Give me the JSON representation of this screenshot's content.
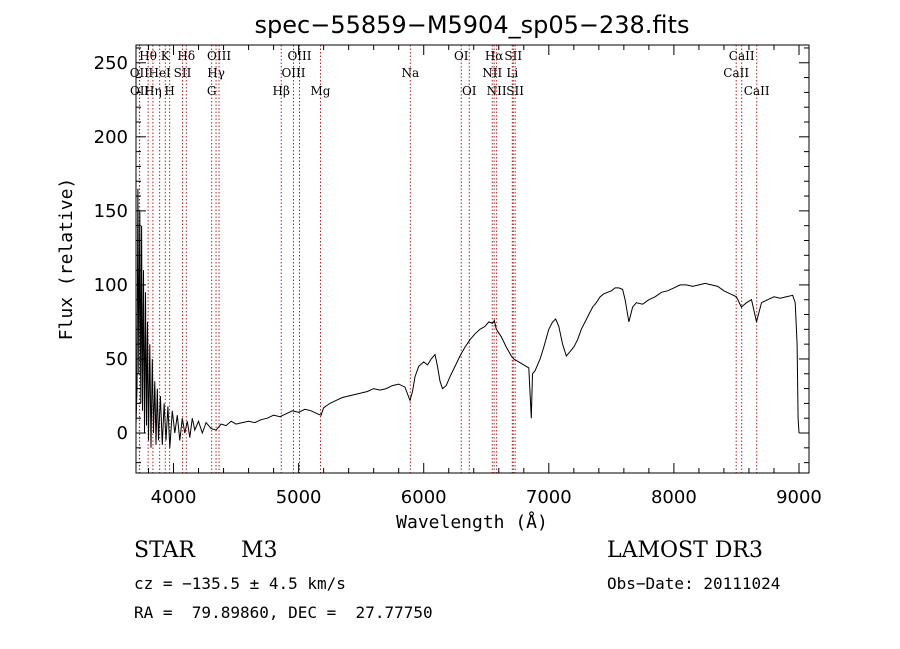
{
  "chart_data": {
    "type": "line",
    "title": "spec−55859−M5904_sp05−238.fits",
    "xlabel": "Wavelength (Å)",
    "ylabel": "Flux (relative)",
    "xlim": [
      3700,
      9080
    ],
    "ylim": [
      -27,
      262
    ],
    "x_ticks": [
      4000,
      5000,
      6000,
      7000,
      8000,
      9000
    ],
    "y_ticks": [
      0,
      50,
      100,
      150,
      200,
      250
    ],
    "line_color": "#000000",
    "marker_color": "#b22222",
    "series": [
      {
        "name": "flux",
        "points": [
          [
            3700,
            5
          ],
          [
            3708,
            30
          ],
          [
            3715,
            165
          ],
          [
            3722,
            40
          ],
          [
            3730,
            150
          ],
          [
            3738,
            20
          ],
          [
            3745,
            140
          ],
          [
            3752,
            15
          ],
          [
            3760,
            110
          ],
          [
            3768,
            0
          ],
          [
            3776,
            95
          ],
          [
            3784,
            5
          ],
          [
            3792,
            75
          ],
          [
            3800,
            -5
          ],
          [
            3810,
            60
          ],
          [
            3820,
            -10
          ],
          [
            3830,
            50
          ],
          [
            3840,
            0
          ],
          [
            3850,
            35
          ],
          [
            3860,
            -8
          ],
          [
            3870,
            30
          ],
          [
            3880,
            -5
          ],
          [
            3895,
            25
          ],
          [
            3910,
            -8
          ],
          [
            3925,
            20
          ],
          [
            3940,
            -5
          ],
          [
            3955,
            18
          ],
          [
            3970,
            -10
          ],
          [
            3990,
            15
          ],
          [
            4010,
            0
          ],
          [
            4030,
            12
          ],
          [
            4050,
            -5
          ],
          [
            4070,
            10
          ],
          [
            4090,
            0
          ],
          [
            4110,
            8
          ],
          [
            4130,
            -3
          ],
          [
            4150,
            10
          ],
          [
            4170,
            2
          ],
          [
            4200,
            8
          ],
          [
            4230,
            0
          ],
          [
            4260,
            7
          ],
          [
            4300,
            3
          ],
          [
            4340,
            2
          ],
          [
            4380,
            6
          ],
          [
            4420,
            5
          ],
          [
            4460,
            8
          ],
          [
            4500,
            6
          ],
          [
            4550,
            7
          ],
          [
            4600,
            8
          ],
          [
            4650,
            7
          ],
          [
            4700,
            9
          ],
          [
            4750,
            10
          ],
          [
            4800,
            12
          ],
          [
            4850,
            11
          ],
          [
            4900,
            13
          ],
          [
            4950,
            15
          ],
          [
            5000,
            14
          ],
          [
            5050,
            16
          ],
          [
            5100,
            15
          ],
          [
            5150,
            13
          ],
          [
            5180,
            12
          ],
          [
            5200,
            17
          ],
          [
            5250,
            20
          ],
          [
            5300,
            22
          ],
          [
            5350,
            24
          ],
          [
            5400,
            25
          ],
          [
            5450,
            26
          ],
          [
            5500,
            27
          ],
          [
            5550,
            28
          ],
          [
            5600,
            30
          ],
          [
            5650,
            29
          ],
          [
            5700,
            30
          ],
          [
            5750,
            32
          ],
          [
            5800,
            33
          ],
          [
            5850,
            31
          ],
          [
            5890,
            22
          ],
          [
            5910,
            28
          ],
          [
            5930,
            38
          ],
          [
            5960,
            45
          ],
          [
            6000,
            48
          ],
          [
            6030,
            46
          ],
          [
            6060,
            50
          ],
          [
            6090,
            53
          ],
          [
            6110,
            45
          ],
          [
            6130,
            35
          ],
          [
            6150,
            30
          ],
          [
            6180,
            32
          ],
          [
            6210,
            38
          ],
          [
            6250,
            45
          ],
          [
            6290,
            52
          ],
          [
            6330,
            58
          ],
          [
            6370,
            63
          ],
          [
            6410,
            67
          ],
          [
            6450,
            70
          ],
          [
            6490,
            72
          ],
          [
            6520,
            75
          ],
          [
            6550,
            74
          ],
          [
            6565,
            76
          ],
          [
            6580,
            70
          ],
          [
            6620,
            65
          ],
          [
            6660,
            58
          ],
          [
            6700,
            52
          ],
          [
            6720,
            50
          ],
          [
            6760,
            48
          ],
          [
            6800,
            46
          ],
          [
            6840,
            44
          ],
          [
            6860,
            10
          ],
          [
            6870,
            40
          ],
          [
            6890,
            42
          ],
          [
            6930,
            50
          ],
          [
            6960,
            58
          ],
          [
            7000,
            70
          ],
          [
            7030,
            75
          ],
          [
            7055,
            77
          ],
          [
            7080,
            72
          ],
          [
            7110,
            60
          ],
          [
            7140,
            52
          ],
          [
            7170,
            55
          ],
          [
            7200,
            58
          ],
          [
            7230,
            63
          ],
          [
            7260,
            70
          ],
          [
            7290,
            75
          ],
          [
            7320,
            80
          ],
          [
            7350,
            85
          ],
          [
            7380,
            88
          ],
          [
            7410,
            92
          ],
          [
            7440,
            94
          ],
          [
            7470,
            95
          ],
          [
            7500,
            96
          ],
          [
            7530,
            98
          ],
          [
            7560,
            98
          ],
          [
            7590,
            97
          ],
          [
            7610,
            90
          ],
          [
            7640,
            75
          ],
          [
            7670,
            85
          ],
          [
            7700,
            88
          ],
          [
            7750,
            87
          ],
          [
            7800,
            90
          ],
          [
            7850,
            92
          ],
          [
            7900,
            95
          ],
          [
            7950,
            96
          ],
          [
            8000,
            98
          ],
          [
            8050,
            100
          ],
          [
            8100,
            100
          ],
          [
            8150,
            99
          ],
          [
            8200,
            100
          ],
          [
            8250,
            101
          ],
          [
            8300,
            100
          ],
          [
            8350,
            99
          ],
          [
            8400,
            96
          ],
          [
            8450,
            94
          ],
          [
            8500,
            92
          ],
          [
            8540,
            85
          ],
          [
            8580,
            88
          ],
          [
            8620,
            90
          ],
          [
            8660,
            75
          ],
          [
            8700,
            88
          ],
          [
            8750,
            90
          ],
          [
            8800,
            92
          ],
          [
            8850,
            91
          ],
          [
            8900,
            92
          ],
          [
            8950,
            93
          ],
          [
            8970,
            88
          ],
          [
            8985,
            60
          ],
          [
            8993,
            10
          ],
          [
            9000,
            0
          ]
        ]
      }
    ],
    "lines": [
      {
        "label": "Hθ",
        "x": 3797,
        "row": 0
      },
      {
        "label": "K",
        "x": 3934,
        "row": 0
      },
      {
        "label": "Hδ",
        "x": 4102,
        "row": 0
      },
      {
        "label": "OIII",
        "x": 4364,
        "row": 0
      },
      {
        "label": "OIII",
        "x": 5007,
        "row": 0
      },
      {
        "label": "OI",
        "x": 6300,
        "row": 0
      },
      {
        "label": "Hα",
        "x": 6563,
        "row": 0
      },
      {
        "label": "SII",
        "x": 6716,
        "row": 0
      },
      {
        "label": "CaII",
        "x": 8542,
        "row": 0
      },
      {
        "label": "OII",
        "x": 3727,
        "row": 1
      },
      {
        "label": "HeI",
        "x": 3889,
        "row": 1
      },
      {
        "label": "SII",
        "x": 4072,
        "row": 1
      },
      {
        "label": "Hγ",
        "x": 4340,
        "row": 1
      },
      {
        "label": "OIII",
        "x": 4959,
        "row": 1
      },
      {
        "label": "Na",
        "x": 5893,
        "row": 1
      },
      {
        "label": "NII",
        "x": 6548,
        "row": 1
      },
      {
        "label": "Li",
        "x": 6708,
        "row": 1
      },
      {
        "label": "CaII",
        "x": 8498,
        "row": 1
      },
      {
        "label": "OII",
        "x": 3729,
        "row": 2
      },
      {
        "label": "Hη",
        "x": 3835,
        "row": 2
      },
      {
        "label": "H",
        "x": 3969,
        "row": 2
      },
      {
        "label": "G",
        "x": 4305,
        "row": 2
      },
      {
        "label": "Hβ",
        "x": 4861,
        "row": 2
      },
      {
        "label": "Mg",
        "x": 5175,
        "row": 2
      },
      {
        "label": "OI",
        "x": 6364,
        "row": 2
      },
      {
        "label": "NII",
        "x": 6583,
        "row": 2
      },
      {
        "label": "SII",
        "x": 6731,
        "row": 2
      },
      {
        "label": "CaII",
        "x": 8662,
        "row": 2
      }
    ]
  },
  "info": {
    "class": "STAR",
    "subclass": "M3",
    "survey": "LAMOST DR3",
    "cz": "cz = −135.5 ± 4.5 km/s",
    "obs_date": "Obs−Date: 20111024",
    "coords": "RA =  79.89860, DEC =  27.77750"
  }
}
